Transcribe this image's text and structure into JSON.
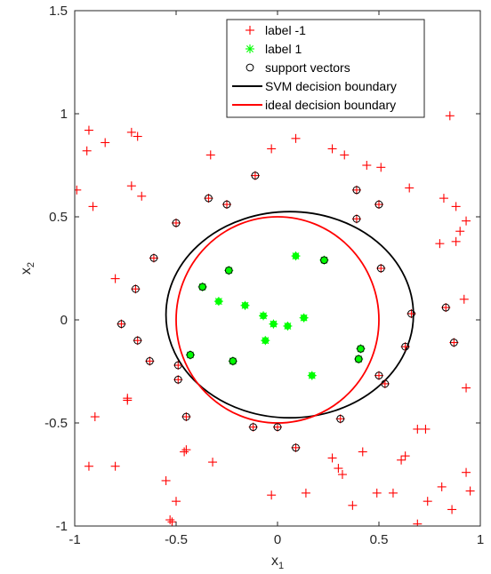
{
  "chart_data": {
    "type": "scatter",
    "xlabel": "x",
    "xlabel_sub": "1",
    "ylabel": "x",
    "ylabel_sub": "2",
    "xlim": [
      -1,
      1
    ],
    "ylim": [
      -1,
      1.5
    ],
    "xticks": [
      -1,
      -0.5,
      0,
      0.5,
      1
    ],
    "xtick_labels": [
      "-1",
      "-0.5",
      "0",
      "0.5",
      "1"
    ],
    "yticks": [
      -1,
      -0.5,
      0,
      0.5,
      1,
      1.5
    ],
    "ytick_labels": [
      "-1",
      "-0.5",
      "0",
      "0.5",
      "1",
      "1.5"
    ],
    "grid": false,
    "legend_position": "top-right",
    "colors": {
      "neg": "#ff0000",
      "pos": "#00ff00",
      "sv": "#000000",
      "svm": "#000000",
      "ideal": "#ff0000"
    },
    "legend": [
      {
        "key": "neg",
        "label": "label -1"
      },
      {
        "key": "pos",
        "label": "label 1"
      },
      {
        "key": "sv",
        "label": "support vectors"
      },
      {
        "key": "svm",
        "label": "SVM decision boundary"
      },
      {
        "key": "ideal",
        "label": "ideal decision boundary"
      }
    ],
    "series": [
      {
        "name": "label -1",
        "marker": "plus",
        "points": [
          [
            -0.93,
            0.92
          ],
          [
            -0.85,
            0.86
          ],
          [
            -0.94,
            0.82
          ],
          [
            -0.72,
            0.91
          ],
          [
            -0.69,
            0.89
          ],
          [
            -0.99,
            0.63
          ],
          [
            -0.72,
            0.65
          ],
          [
            -0.67,
            0.6
          ],
          [
            -0.91,
            0.55
          ],
          [
            -0.11,
            0.7
          ],
          [
            -0.03,
            0.83
          ],
          [
            0.09,
            0.88
          ],
          [
            -0.33,
            0.8
          ],
          [
            -0.34,
            0.59
          ],
          [
            -0.25,
            0.56
          ],
          [
            -0.5,
            0.47
          ],
          [
            -0.61,
            0.3
          ],
          [
            -0.8,
            0.2
          ],
          [
            -0.7,
            0.15
          ],
          [
            -0.77,
            -0.02
          ],
          [
            -0.69,
            -0.1
          ],
          [
            -0.63,
            -0.2
          ],
          [
            -0.74,
            -0.38
          ],
          [
            -0.74,
            -0.39
          ],
          [
            -0.9,
            -0.47
          ],
          [
            -0.49,
            -0.22
          ],
          [
            -0.49,
            -0.29
          ],
          [
            -0.45,
            -0.47
          ],
          [
            -0.93,
            -0.71
          ],
          [
            -0.8,
            -0.71
          ],
          [
            -0.46,
            -0.64
          ],
          [
            -0.45,
            -0.63
          ],
          [
            -0.32,
            -0.69
          ],
          [
            -0.55,
            -0.78
          ],
          [
            -0.5,
            -0.88
          ],
          [
            -0.53,
            -0.97
          ],
          [
            -0.52,
            -0.98
          ],
          [
            -0.12,
            -0.52
          ],
          [
            0.0,
            -0.52
          ],
          [
            0.09,
            -0.62
          ],
          [
            -0.03,
            -0.85
          ],
          [
            0.14,
            -0.84
          ],
          [
            0.31,
            -0.48
          ],
          [
            0.27,
            -0.67
          ],
          [
            0.3,
            -0.72
          ],
          [
            0.32,
            -0.75
          ],
          [
            0.37,
            -0.9
          ],
          [
            0.42,
            -0.64
          ],
          [
            0.49,
            -0.84
          ],
          [
            0.57,
            -0.84
          ],
          [
            0.61,
            -0.68
          ],
          [
            0.63,
            -0.66
          ],
          [
            0.69,
            -0.53
          ],
          [
            0.5,
            -0.27
          ],
          [
            0.53,
            -0.31
          ],
          [
            0.63,
            -0.13
          ],
          [
            0.66,
            0.03
          ],
          [
            0.51,
            0.25
          ],
          [
            0.33,
            0.8
          ],
          [
            0.39,
            0.63
          ],
          [
            0.44,
            0.75
          ],
          [
            0.51,
            0.74
          ],
          [
            0.5,
            0.56
          ],
          [
            0.65,
            0.64
          ],
          [
            0.82,
            0.59
          ],
          [
            0.88,
            0.55
          ],
          [
            0.93,
            0.48
          ],
          [
            0.9,
            0.43
          ],
          [
            0.88,
            0.38
          ],
          [
            0.8,
            0.37
          ],
          [
            0.85,
            0.99
          ],
          [
            0.92,
            0.1
          ],
          [
            0.83,
            0.06
          ],
          [
            0.87,
            -0.11
          ],
          [
            0.93,
            -0.33
          ],
          [
            0.93,
            -0.74
          ],
          [
            0.95,
            -0.83
          ],
          [
            0.81,
            -0.81
          ],
          [
            0.86,
            -0.92
          ],
          [
            0.74,
            -0.88
          ],
          [
            0.69,
            -0.99
          ],
          [
            0.73,
            -0.53
          ],
          [
            0.39,
            0.49
          ],
          [
            0.27,
            0.83
          ]
        ]
      },
      {
        "name": "label 1",
        "marker": "star",
        "points": [
          [
            -0.37,
            0.16
          ],
          [
            -0.24,
            0.24
          ],
          [
            -0.29,
            0.09
          ],
          [
            -0.16,
            0.07
          ],
          [
            -0.07,
            0.02
          ],
          [
            -0.02,
            -0.02
          ],
          [
            0.05,
            -0.03
          ],
          [
            0.13,
            0.01
          ],
          [
            0.09,
            0.31
          ],
          [
            0.23,
            0.29
          ],
          [
            -0.06,
            -0.1
          ],
          [
            -0.43,
            -0.17
          ],
          [
            -0.22,
            -0.2
          ],
          [
            0.17,
            -0.27
          ],
          [
            0.41,
            -0.14
          ],
          [
            0.4,
            -0.19
          ]
        ]
      },
      {
        "name": "support vectors",
        "marker": "circle",
        "points": [
          [
            -0.11,
            0.7
          ],
          [
            -0.34,
            0.59
          ],
          [
            -0.25,
            0.56
          ],
          [
            -0.5,
            0.47
          ],
          [
            -0.61,
            0.3
          ],
          [
            -0.7,
            0.15
          ],
          [
            -0.77,
            -0.02
          ],
          [
            -0.69,
            -0.1
          ],
          [
            -0.63,
            -0.2
          ],
          [
            -0.49,
            -0.22
          ],
          [
            -0.49,
            -0.29
          ],
          [
            -0.45,
            -0.47
          ],
          [
            -0.12,
            -0.52
          ],
          [
            0.0,
            -0.52
          ],
          [
            0.09,
            -0.62
          ],
          [
            0.31,
            -0.48
          ],
          [
            0.5,
            -0.27
          ],
          [
            0.53,
            -0.31
          ],
          [
            0.63,
            -0.13
          ],
          [
            0.66,
            0.03
          ],
          [
            0.51,
            0.25
          ],
          [
            0.39,
            0.63
          ],
          [
            0.5,
            0.56
          ],
          [
            0.83,
            0.06
          ],
          [
            0.87,
            -0.11
          ],
          [
            0.39,
            0.49
          ],
          [
            -0.37,
            0.16
          ],
          [
            -0.24,
            0.24
          ],
          [
            0.23,
            0.29
          ],
          [
            -0.43,
            -0.17
          ],
          [
            -0.22,
            -0.2
          ],
          [
            0.41,
            -0.14
          ],
          [
            0.4,
            -0.19
          ]
        ]
      }
    ],
    "boundaries": [
      {
        "name": "SVM decision boundary",
        "key": "svm",
        "cx": 0.06,
        "cy": 0.025,
        "rx": 0.61,
        "ry": 0.5
      },
      {
        "name": "ideal decision boundary",
        "key": "ideal",
        "cx": 0,
        "cy": 0,
        "rx": 0.5,
        "ry": 0.5
      }
    ]
  }
}
